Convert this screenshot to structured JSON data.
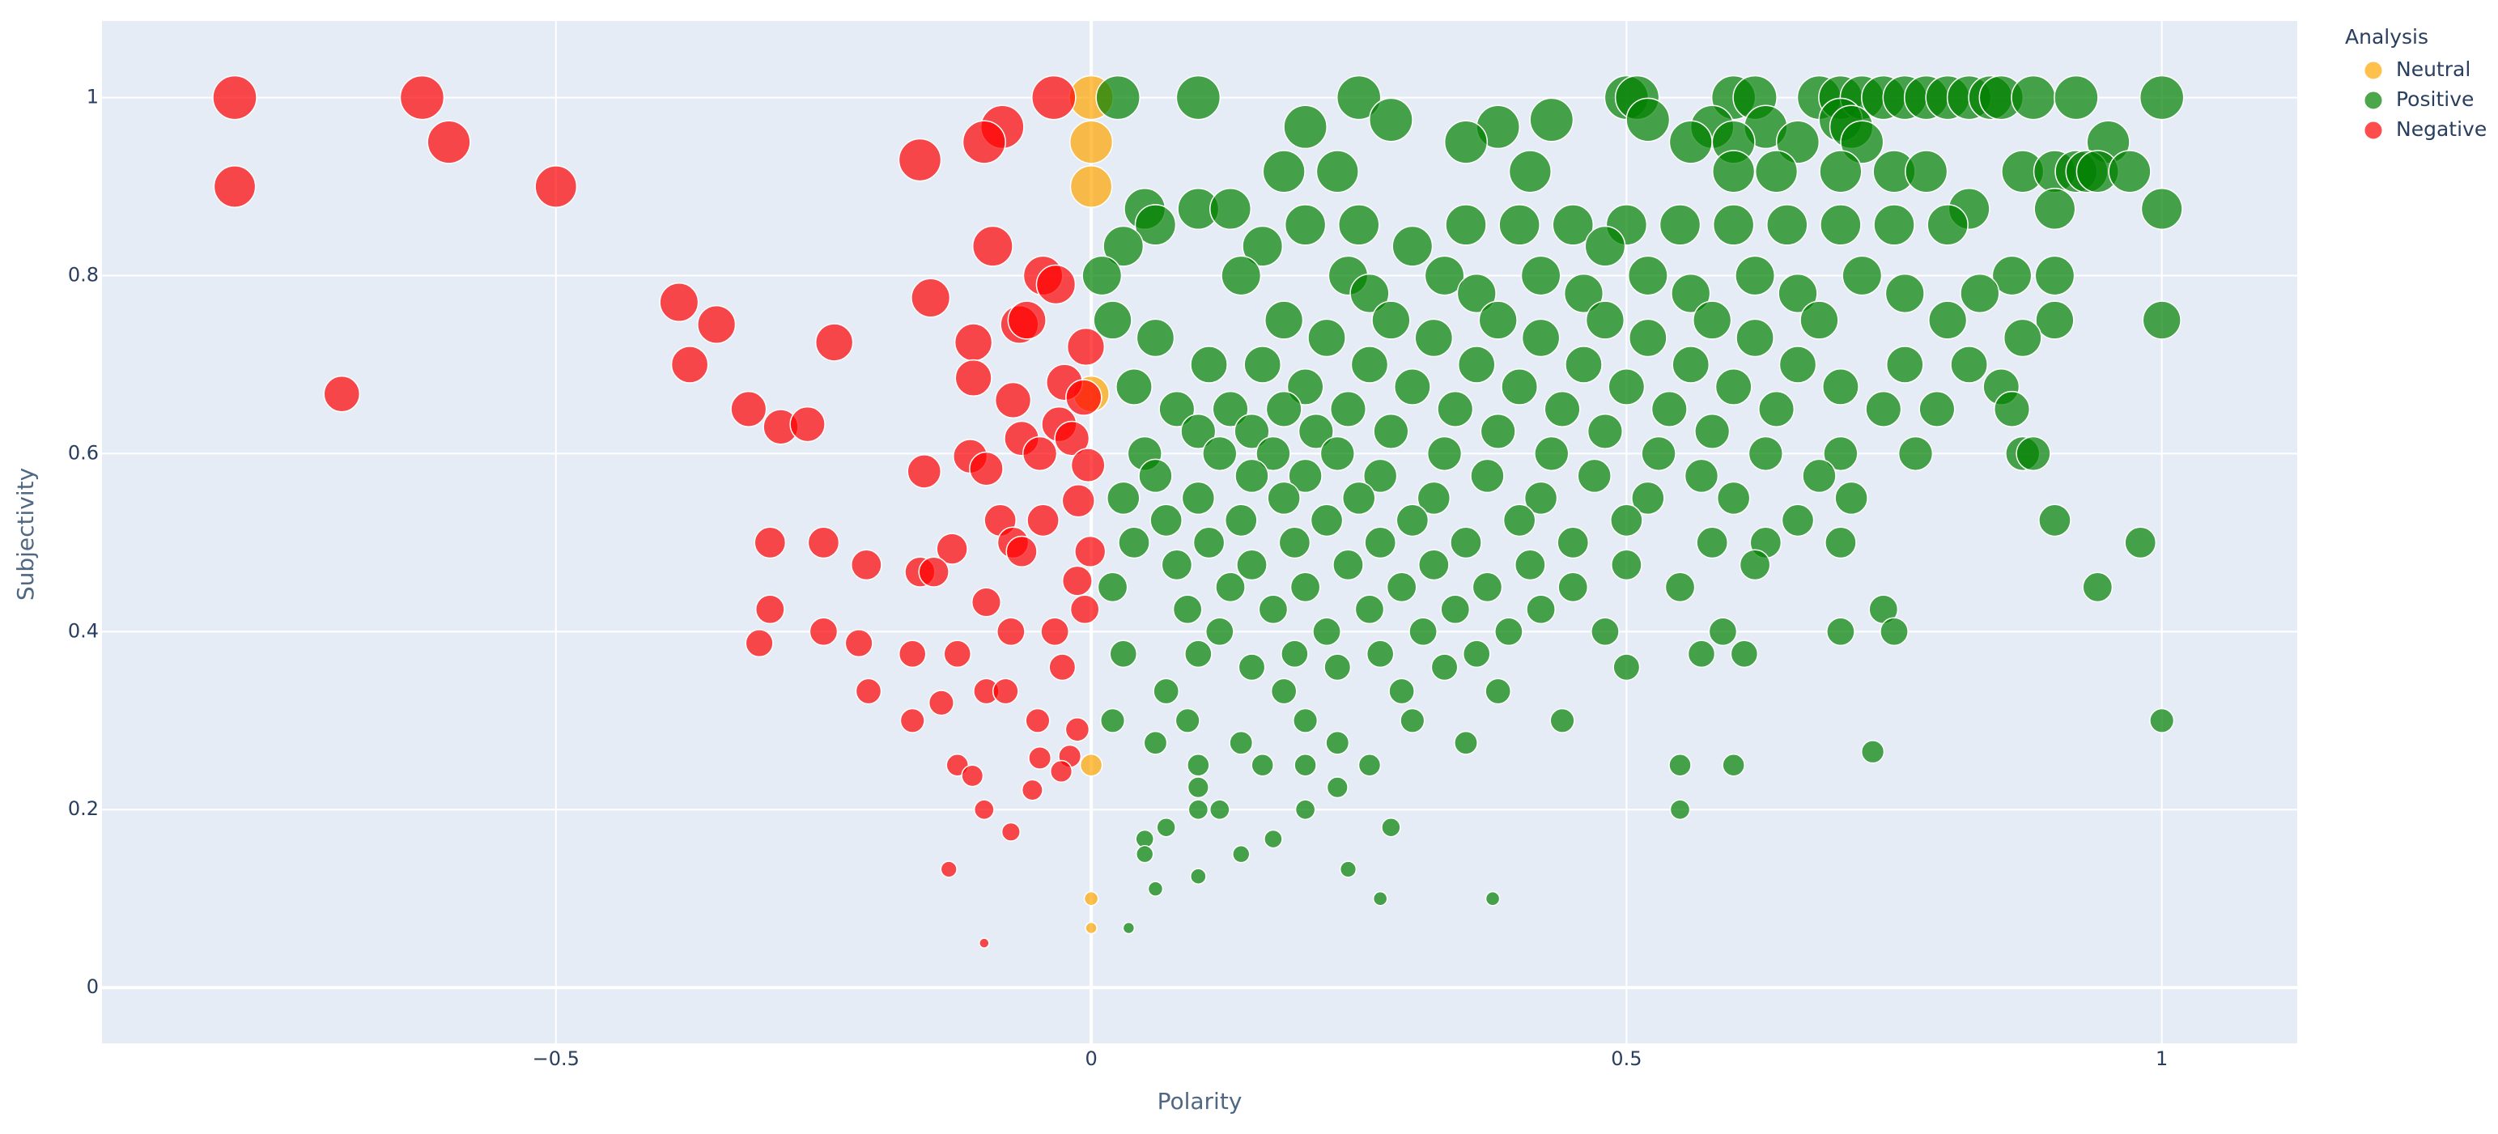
{
  "chart_data": {
    "type": "scatter",
    "x_label": "Polarity",
    "y_label": "Subjectivity",
    "legend_title": "Analysis",
    "xlim": [
      -0.924,
      1.1265
    ],
    "ylim": [
      -0.0626,
      1.086
    ],
    "xticks": [
      {
        "value": -0.5,
        "label": "−0.5"
      },
      0,
      0.5,
      1
    ],
    "yticks": [
      0,
      0.2,
      0.4,
      0.6,
      0.8,
      1
    ],
    "grid": true,
    "legend": "right",
    "series": [
      {
        "name": "Neutral",
        "color": "#FFA500",
        "x": [
          0,
          0,
          0,
          0,
          0,
          0,
          0
        ],
        "y": [
          1,
          0.95,
          0.9,
          0.667,
          0.25,
          0.1,
          0.067
        ]
      },
      {
        "name": "Positive",
        "color": "green",
        "x": [
          0.025,
          0.1,
          0.25,
          0.5,
          0.51,
          0.6,
          0.62,
          0.68,
          0.7,
          0.72,
          0.74,
          0.76,
          0.78,
          0.8,
          0.82,
          0.84,
          0.85,
          0.88,
          0.92,
          1,
          0.28,
          0.43,
          0.52,
          0.7,
          0.2,
          0.38,
          0.58,
          0.63,
          0.71,
          0.35,
          0.6,
          0.56,
          0.66,
          0.72,
          0.95,
          0.18,
          0.23,
          0.41,
          0.6,
          0.64,
          0.7,
          0.75,
          0.78,
          0.87,
          0.9,
          0.92,
          0.93,
          0.94,
          0.97,
          0.9,
          1,
          0.82,
          0.05,
          0.1,
          0.13,
          0.06,
          0.2,
          0.25,
          0.35,
          0.4,
          0.45,
          0.5,
          0.55,
          0.6,
          0.65,
          0.7,
          0.75,
          0.8,
          0.03,
          0.16,
          0.3,
          0.48,
          0.01,
          0.14,
          0.24,
          0.33,
          0.42,
          0.52,
          0.62,
          0.72,
          0.86,
          0.9,
          0.26,
          0.36,
          0.46,
          0.56,
          0.66,
          0.76,
          0.83,
          0.02,
          0.18,
          0.28,
          0.38,
          0.48,
          0.58,
          0.68,
          0.8,
          0.9,
          1,
          0.06,
          0.22,
          0.32,
          0.42,
          0.52,
          0.62,
          0.87,
          0.11,
          0.16,
          0.26,
          0.36,
          0.46,
          0.56,
          0.66,
          0.76,
          0.82,
          0.04,
          0.2,
          0.3,
          0.4,
          0.5,
          0.6,
          0.7,
          0.85,
          0.08,
          0.13,
          0.18,
          0.24,
          0.34,
          0.44,
          0.54,
          0.64,
          0.74,
          0.79,
          0.86,
          0.1,
          0.15,
          0.21,
          0.28,
          0.38,
          0.48,
          0.58,
          0.05,
          0.12,
          0.17,
          0.23,
          0.33,
          0.43,
          0.53,
          0.63,
          0.7,
          0.77,
          0.87,
          0.88,
          0.06,
          0.15,
          0.2,
          0.27,
          0.37,
          0.47,
          0.57,
          0.68,
          0.03,
          0.1,
          0.18,
          0.25,
          0.32,
          0.42,
          0.52,
          0.6,
          0.71,
          0.07,
          0.14,
          0.22,
          0.3,
          0.4,
          0.5,
          0.66,
          0.9,
          0.04,
          0.11,
          0.19,
          0.27,
          0.35,
          0.45,
          0.58,
          0.63,
          0.7,
          0.98,
          0.08,
          0.15,
          0.24,
          0.32,
          0.41,
          0.5,
          0.62,
          0.02,
          0.13,
          0.2,
          0.29,
          0.37,
          0.45,
          0.55,
          0.94,
          0.09,
          0.17,
          0.26,
          0.34,
          0.42,
          0.74,
          0.12,
          0.22,
          0.31,
          0.39,
          0.48,
          0.59,
          0.7,
          0.75,
          0.03,
          0.1,
          0.19,
          0.27,
          0.36,
          0.57,
          0.61,
          0.15,
          0.23,
          0.33,
          0.5,
          0.07,
          0.18,
          0.29,
          0.38,
          0.02,
          0.09,
          0.2,
          0.3,
          0.44,
          1,
          0.06,
          0.14,
          0.23,
          0.35,
          0.73,
          0.1,
          0.16,
          0.2,
          0.26,
          0.55,
          0.6,
          0.1,
          0.23,
          0.1,
          0.12,
          0.2,
          0.55,
          0.07,
          0.28,
          0.05,
          0.17,
          0.05,
          0.14,
          0.24,
          0.1,
          0.06,
          0.27,
          0.375,
          0.035
        ],
        "y": [
          1,
          1,
          1,
          1,
          1,
          1,
          1,
          1,
          1,
          1,
          1,
          1,
          1,
          1,
          1,
          1,
          1,
          1,
          1,
          1,
          0.975,
          0.975,
          0.975,
          0.975,
          0.967,
          0.967,
          0.967,
          0.967,
          0.967,
          0.95,
          0.95,
          0.95,
          0.95,
          0.95,
          0.95,
          0.917,
          0.917,
          0.917,
          0.917,
          0.917,
          0.917,
          0.917,
          0.917,
          0.917,
          0.917,
          0.917,
          0.917,
          0.917,
          0.917,
          0.875,
          0.875,
          0.875,
          0.875,
          0.875,
          0.875,
          0.857,
          0.857,
          0.857,
          0.857,
          0.857,
          0.857,
          0.857,
          0.857,
          0.857,
          0.857,
          0.857,
          0.857,
          0.857,
          0.833,
          0.833,
          0.833,
          0.833,
          0.8,
          0.8,
          0.8,
          0.8,
          0.8,
          0.8,
          0.8,
          0.8,
          0.8,
          0.8,
          0.78,
          0.78,
          0.78,
          0.78,
          0.78,
          0.78,
          0.78,
          0.75,
          0.75,
          0.75,
          0.75,
          0.75,
          0.75,
          0.75,
          0.75,
          0.75,
          0.75,
          0.73,
          0.73,
          0.73,
          0.73,
          0.73,
          0.73,
          0.73,
          0.7,
          0.7,
          0.7,
          0.7,
          0.7,
          0.7,
          0.7,
          0.7,
          0.7,
          0.675,
          0.675,
          0.675,
          0.675,
          0.675,
          0.675,
          0.675,
          0.675,
          0.65,
          0.65,
          0.65,
          0.65,
          0.65,
          0.65,
          0.65,
          0.65,
          0.65,
          0.65,
          0.65,
          0.625,
          0.625,
          0.625,
          0.625,
          0.625,
          0.625,
          0.625,
          0.6,
          0.6,
          0.6,
          0.6,
          0.6,
          0.6,
          0.6,
          0.6,
          0.6,
          0.6,
          0.6,
          0.6,
          0.575,
          0.575,
          0.575,
          0.575,
          0.575,
          0.575,
          0.575,
          0.575,
          0.55,
          0.55,
          0.55,
          0.55,
          0.55,
          0.55,
          0.55,
          0.55,
          0.55,
          0.525,
          0.525,
          0.525,
          0.525,
          0.525,
          0.525,
          0.525,
          0.525,
          0.5,
          0.5,
          0.5,
          0.5,
          0.5,
          0.5,
          0.5,
          0.5,
          0.5,
          0.5,
          0.475,
          0.475,
          0.475,
          0.475,
          0.475,
          0.475,
          0.475,
          0.45,
          0.45,
          0.45,
          0.45,
          0.45,
          0.45,
          0.45,
          0.45,
          0.425,
          0.425,
          0.425,
          0.425,
          0.425,
          0.425,
          0.4,
          0.4,
          0.4,
          0.4,
          0.4,
          0.4,
          0.4,
          0.4,
          0.375,
          0.375,
          0.375,
          0.375,
          0.375,
          0.375,
          0.375,
          0.36,
          0.36,
          0.36,
          0.36,
          0.333,
          0.333,
          0.333,
          0.333,
          0.3,
          0.3,
          0.3,
          0.3,
          0.3,
          0.3,
          0.275,
          0.275,
          0.275,
          0.275,
          0.265,
          0.25,
          0.25,
          0.25,
          0.25,
          0.25,
          0.25,
          0.225,
          0.225,
          0.2,
          0.2,
          0.2,
          0.2,
          0.18,
          0.18,
          0.167,
          0.167,
          0.15,
          0.15,
          0.133,
          0.125,
          0.111,
          0.1,
          0.1,
          0.067
        ]
      },
      {
        "name": "Negative",
        "color": "red",
        "x": [
          -0.8,
          -0.8,
          -0.625,
          -0.6,
          -0.5,
          -0.7,
          -0.385,
          -0.35,
          -0.375,
          -0.32,
          -0.29,
          -0.265,
          -0.24,
          -0.035,
          -0.083,
          -0.1,
          -0.16,
          -0.092,
          -0.15,
          -0.11,
          -0.11,
          -0.067,
          -0.045,
          -0.033,
          -0.06,
          -0.073,
          -0.025,
          -0.005,
          -0.065,
          -0.048,
          -0.03,
          -0.018,
          -0.007,
          -0.003,
          -0.156,
          -0.113,
          -0.098,
          -0.012,
          -0.001,
          -0.3,
          -0.25,
          -0.21,
          -0.13,
          -0.085,
          -0.073,
          -0.065,
          -0.045,
          -0.16,
          -0.147,
          -0.013,
          -0.006,
          -0.3,
          -0.31,
          -0.25,
          -0.217,
          -0.098,
          -0.075,
          -0.208,
          -0.167,
          -0.125,
          -0.098,
          -0.08,
          -0.034,
          -0.027,
          -0.14,
          -0.05,
          -0.167,
          -0.013,
          -0.125,
          -0.111,
          -0.02,
          -0.048,
          -0.028,
          -0.055,
          -0.1,
          -0.075,
          -0.133,
          -0.1
        ],
        "y": [
          1,
          0.9,
          1,
          0.95,
          0.9,
          0.667,
          0.77,
          0.745,
          0.7,
          0.65,
          0.63,
          0.633,
          0.725,
          1,
          0.967,
          0.95,
          0.93,
          0.833,
          0.775,
          0.725,
          0.685,
          0.745,
          0.8,
          0.79,
          0.75,
          0.66,
          0.68,
          0.72,
          0.617,
          0.6,
          0.633,
          0.617,
          0.663,
          0.587,
          0.58,
          0.597,
          0.583,
          0.547,
          0.49,
          0.5,
          0.5,
          0.475,
          0.493,
          0.525,
          0.5,
          0.49,
          0.525,
          0.467,
          0.467,
          0.457,
          0.425,
          0.425,
          0.387,
          0.4,
          0.387,
          0.433,
          0.4,
          0.333,
          0.375,
          0.375,
          0.333,
          0.333,
          0.4,
          0.36,
          0.32,
          0.3,
          0.3,
          0.29,
          0.25,
          0.238,
          0.26,
          0.258,
          0.243,
          0.222,
          0.2,
          0.175,
          0.133,
          0.05
        ]
      }
    ]
  }
}
